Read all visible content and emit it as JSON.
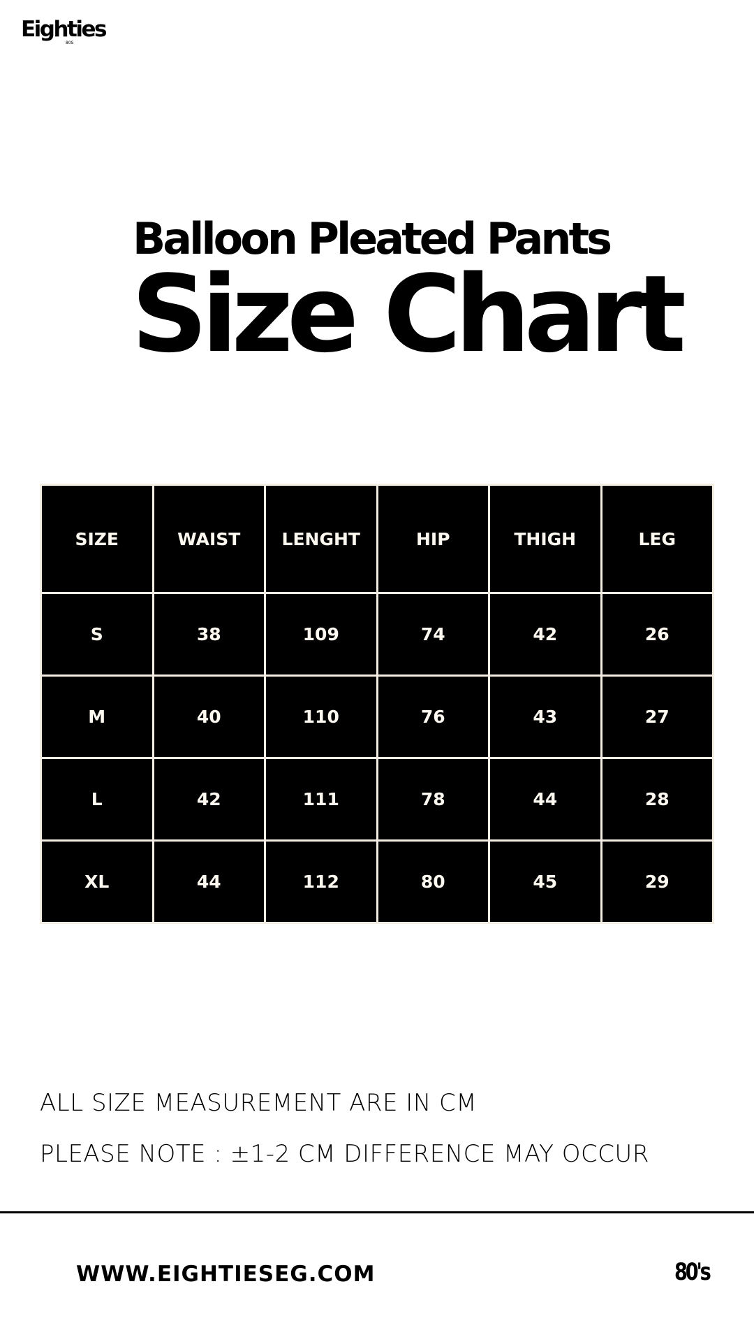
{
  "brand": {
    "logo": "Eighties",
    "logo_sub": "80S"
  },
  "header": {
    "product": "Balloon Pleated Pants",
    "title": "Size Chart"
  },
  "table": {
    "headers": [
      "SIZE",
      "WAIST",
      "LENGHT",
      "HIP",
      "THIGH",
      "LEG"
    ],
    "rows": [
      [
        "S",
        "38",
        "109",
        "74",
        "42",
        "26"
      ],
      [
        "M",
        "40",
        "110",
        "76",
        "43",
        "27"
      ],
      [
        "L",
        "42",
        "111",
        "78",
        "44",
        "28"
      ],
      [
        "XL",
        "44",
        "112",
        "80",
        "45",
        "29"
      ]
    ]
  },
  "notes": [
    "ALL SIZE MEASUREMENT ARE IN CM",
    "PLEASE NOTE : ±1-2 CM DIFFERENCE MAY OCCUR"
  ],
  "footer": {
    "website": "WWW.EIGHTIESEG.COM",
    "mark": "80's"
  }
}
